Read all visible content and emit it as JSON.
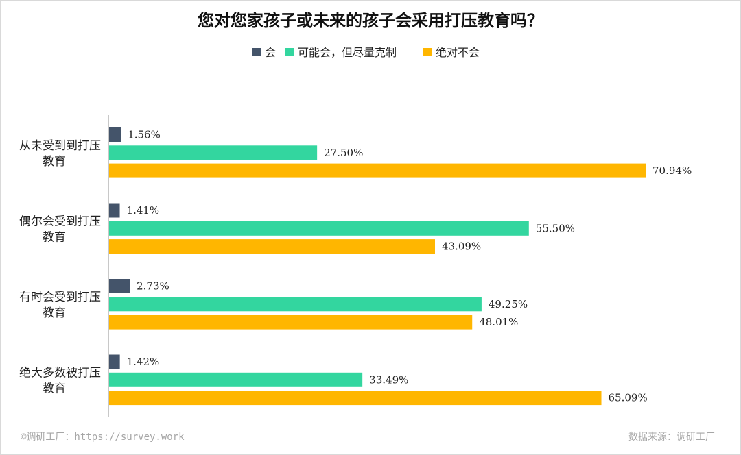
{
  "footer": {
    "copyright": "©调研工厂：https://survey.work",
    "source": "数据来源：调研工厂"
  },
  "chart_data": {
    "type": "bar",
    "orientation": "horizontal",
    "title": "您对您家孩子或未来的孩子会采用打压教育吗？",
    "categories": [
      [
        "从未受到到打压",
        "教育"
      ],
      [
        "偶尔会受到打压",
        "教育"
      ],
      [
        "有时会受到打压",
        "教育"
      ],
      [
        "绝大多数被打压",
        "教育"
      ]
    ],
    "series": [
      {
        "name": "会",
        "color": "#44546a",
        "values": [
          1.56,
          1.41,
          2.73,
          1.42
        ],
        "labels": [
          "1.56%",
          "1.41%",
          "2.73%",
          "1.42%"
        ]
      },
      {
        "name": "可能会，但尽量克制",
        "color": "#33d69f",
        "values": [
          27.5,
          55.5,
          49.25,
          33.49
        ],
        "labels": [
          "27.50%",
          "55.50%",
          "49.25%",
          "33.49%"
        ]
      },
      {
        "name": "绝对不会",
        "color": "#ffb600",
        "values": [
          70.94,
          43.09,
          48.01,
          65.09
        ],
        "labels": [
          "70.94%",
          "43.09%",
          "48.01%",
          "65.09%"
        ]
      }
    ],
    "xlim": [
      0,
      70.94
    ],
    "legend_position": "top-center",
    "grid": false
  }
}
